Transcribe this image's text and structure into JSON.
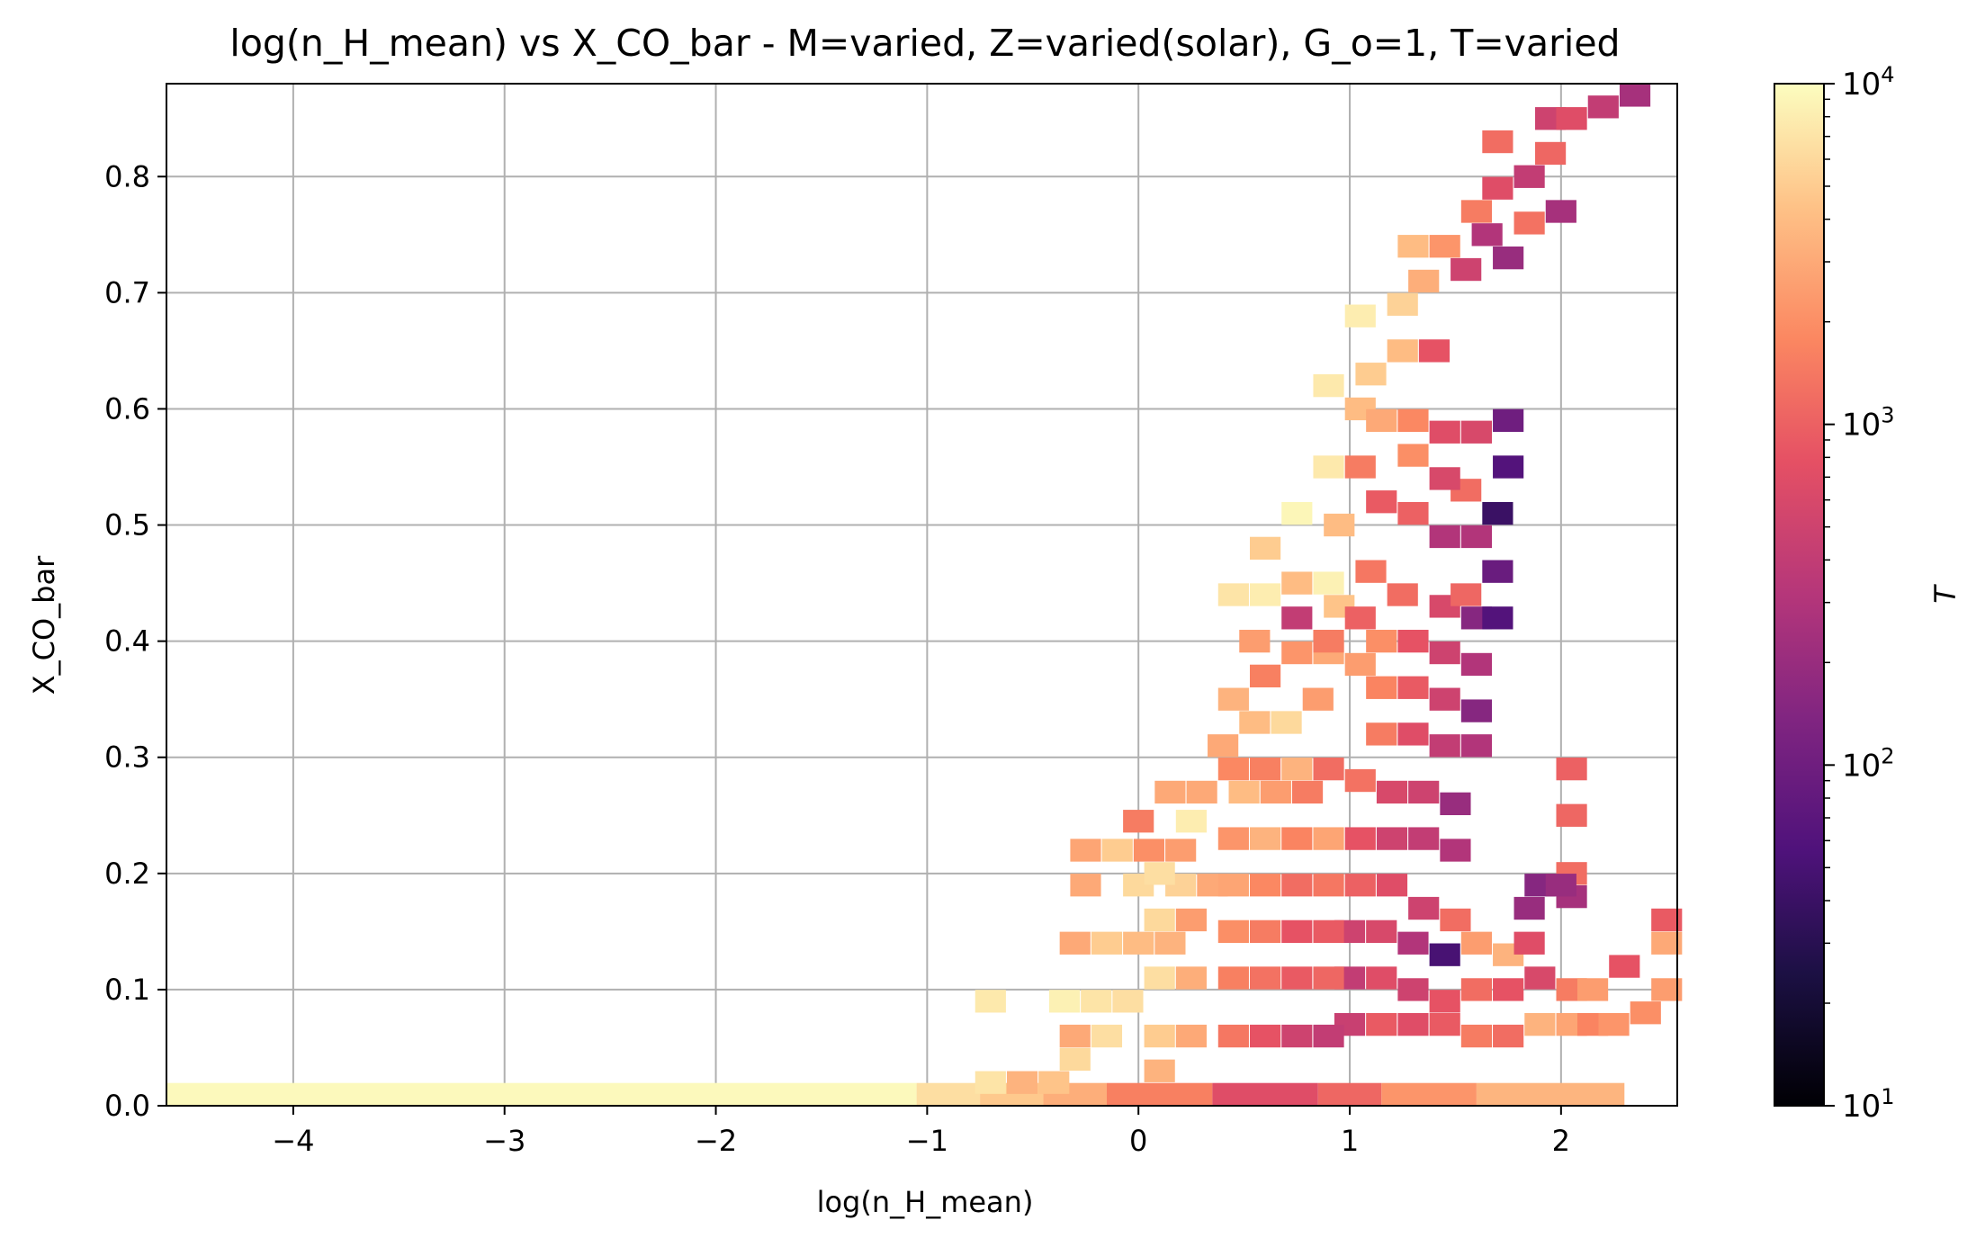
{
  "chart_data": {
    "type": "heatmap",
    "title": "log(n_H_mean) vs X_CO_bar - M=varied, Z=varied(solar), G_o=1, T=varied",
    "xlabel": "log(n_H_mean)",
    "ylabel": "X_CO_bar",
    "xlim": [
      -4.6,
      2.55
    ],
    "ylim": [
      0.0,
      0.88
    ],
    "x_ticks": [
      -4,
      -3,
      -2,
      -1,
      0,
      1,
      2
    ],
    "x_tick_labels": [
      "−4",
      "−3",
      "−2",
      "−1",
      "0",
      "1",
      "2"
    ],
    "y_ticks": [
      0.0,
      0.1,
      0.2,
      0.3,
      0.4,
      0.5,
      0.6,
      0.7,
      0.8
    ],
    "y_tick_labels": [
      "0.0",
      "0.1",
      "0.2",
      "0.3",
      "0.4",
      "0.5",
      "0.6",
      "0.7",
      "0.8"
    ],
    "grid": true,
    "colormap": "magma",
    "color_scale": "log",
    "colorbar": {
      "label": "T",
      "range": [
        10,
        10000
      ],
      "ticks": [
        10,
        100,
        1000,
        10000
      ],
      "tick_bases": [
        "10",
        "10",
        "10",
        "10"
      ],
      "tick_exponents": [
        "1",
        "2",
        "3",
        "4"
      ]
    },
    "bin_width_x": 0.1455,
    "bin_height_y": 0.0196,
    "bottom_row": {
      "y": 0.0,
      "segments": [
        {
          "x0": -4.6,
          "x1": -1.05,
          "T": 9500
        },
        {
          "x0": -1.05,
          "x1": -0.75,
          "T": 6500
        },
        {
          "x0": -0.75,
          "x1": -0.45,
          "T": 4800
        },
        {
          "x0": -0.45,
          "x1": -0.15,
          "T": 3200
        },
        {
          "x0": -0.15,
          "x1": 0.35,
          "T": 1600
        },
        {
          "x0": 0.35,
          "x1": 0.85,
          "T": 700
        },
        {
          "x0": 0.85,
          "x1": 1.15,
          "T": 1100
        },
        {
          "x0": 1.15,
          "x1": 1.6,
          "T": 2200
        },
        {
          "x0": 1.6,
          "x1": 2.3,
          "T": 3600
        }
      ]
    },
    "cells": [
      [
        -0.7,
        0.02,
        7000
      ],
      [
        -0.55,
        0.02,
        3500
      ],
      [
        -0.4,
        0.02,
        4500
      ],
      [
        -0.7,
        0.09,
        7500
      ],
      [
        -0.35,
        0.09,
        8500
      ],
      [
        -0.2,
        0.09,
        7000
      ],
      [
        -0.05,
        0.09,
        6500
      ],
      [
        -0.3,
        0.14,
        3000
      ],
      [
        -0.15,
        0.14,
        5000
      ],
      [
        0.0,
        0.14,
        4000
      ],
      [
        0.15,
        0.14,
        3500
      ],
      [
        -0.25,
        0.19,
        3000
      ],
      [
        0.0,
        0.19,
        6000
      ],
      [
        0.2,
        0.19,
        5500
      ],
      [
        0.35,
        0.19,
        3000
      ],
      [
        -0.25,
        0.22,
        2800
      ],
      [
        -0.1,
        0.22,
        5000
      ],
      [
        0.05,
        0.22,
        2000
      ],
      [
        0.2,
        0.22,
        2500
      ],
      [
        0.3,
        0.27,
        3000
      ],
      [
        0.0,
        0.245,
        1500
      ],
      [
        0.25,
        0.245,
        8000
      ],
      [
        0.15,
        0.27,
        3000
      ],
      [
        0.5,
        0.27,
        4000
      ],
      [
        0.65,
        0.27,
        2500
      ],
      [
        0.8,
        0.27,
        1500
      ],
      [
        0.45,
        0.29,
        1800
      ],
      [
        0.6,
        0.29,
        1600
      ],
      [
        0.75,
        0.29,
        3500
      ],
      [
        0.9,
        0.29,
        1200
      ],
      [
        0.4,
        0.31,
        3000
      ],
      [
        0.55,
        0.33,
        4000
      ],
      [
        0.7,
        0.33,
        6000
      ],
      [
        0.85,
        0.35,
        2500
      ],
      [
        0.45,
        0.35,
        3500
      ],
      [
        0.6,
        0.37,
        1600
      ],
      [
        0.75,
        0.39,
        2200
      ],
      [
        0.9,
        0.39,
        3000
      ],
      [
        0.55,
        0.4,
        2500
      ],
      [
        0.75,
        0.42,
        400
      ],
      [
        0.95,
        0.43,
        4500
      ],
      [
        0.45,
        0.44,
        7000
      ],
      [
        0.6,
        0.44,
        8000
      ],
      [
        0.75,
        0.45,
        4000
      ],
      [
        0.9,
        0.45,
        8500
      ],
      [
        0.6,
        0.48,
        5000
      ],
      [
        0.75,
        0.51,
        9000
      ],
      [
        0.95,
        0.5,
        4000
      ],
      [
        0.9,
        0.55,
        7500
      ],
      [
        1.05,
        0.55,
        1500
      ],
      [
        1.15,
        0.52,
        900
      ],
      [
        1.3,
        0.51,
        1000
      ],
      [
        1.05,
        0.6,
        4000
      ],
      [
        1.15,
        0.59,
        3000
      ],
      [
        1.3,
        0.59,
        1800
      ],
      [
        1.45,
        0.58,
        700
      ],
      [
        0.9,
        0.62,
        7500
      ],
      [
        1.1,
        0.63,
        5000
      ],
      [
        1.25,
        0.65,
        4000
      ],
      [
        1.4,
        0.65,
        800
      ],
      [
        1.05,
        0.68,
        8000
      ],
      [
        1.25,
        0.69,
        5500
      ],
      [
        1.35,
        0.71,
        3200
      ],
      [
        1.55,
        0.72,
        500
      ],
      [
        1.3,
        0.74,
        4000
      ],
      [
        1.45,
        0.74,
        2200
      ],
      [
        1.65,
        0.75,
        300
      ],
      [
        1.75,
        0.73,
        200
      ],
      [
        1.6,
        0.77,
        1500
      ],
      [
        1.7,
        0.79,
        700
      ],
      [
        1.85,
        0.8,
        400
      ],
      [
        1.7,
        0.83,
        1200
      ],
      [
        1.95,
        0.85,
        500
      ],
      [
        2.05,
        0.85,
        700
      ],
      [
        2.2,
        0.86,
        400
      ],
      [
        2.35,
        0.87,
        250
      ],
      [
        1.85,
        0.76,
        1300
      ],
      [
        2.0,
        0.77,
        250
      ],
      [
        1.95,
        0.82,
        1100
      ],
      [
        1.1,
        0.46,
        1400
      ],
      [
        1.25,
        0.44,
        1200
      ],
      [
        1.45,
        0.43,
        600
      ],
      [
        1.6,
        0.42,
        150
      ],
      [
        1.7,
        0.42,
        60
      ],
      [
        1.55,
        0.44,
        1100
      ],
      [
        1.7,
        0.46,
        90
      ],
      [
        1.15,
        0.4,
        2000
      ],
      [
        1.3,
        0.4,
        800
      ],
      [
        1.45,
        0.39,
        500
      ],
      [
        1.6,
        0.38,
        300
      ],
      [
        1.15,
        0.36,
        1700
      ],
      [
        1.3,
        0.36,
        900
      ],
      [
        1.45,
        0.35,
        500
      ],
      [
        1.6,
        0.34,
        150
      ],
      [
        1.15,
        0.32,
        1500
      ],
      [
        1.3,
        0.32,
        700
      ],
      [
        1.45,
        0.31,
        400
      ],
      [
        1.6,
        0.31,
        300
      ],
      [
        1.05,
        0.28,
        1300
      ],
      [
        1.2,
        0.27,
        600
      ],
      [
        1.35,
        0.27,
        500
      ],
      [
        1.5,
        0.26,
        200
      ],
      [
        1.05,
        0.23,
        800
      ],
      [
        1.2,
        0.23,
        500
      ],
      [
        1.35,
        0.23,
        400
      ],
      [
        1.5,
        0.22,
        300
      ],
      [
        1.05,
        0.19,
        1000
      ],
      [
        1.2,
        0.19,
        700
      ],
      [
        1.35,
        0.17,
        500
      ],
      [
        1.5,
        0.16,
        1200
      ],
      [
        1.0,
        0.15,
        500
      ],
      [
        1.15,
        0.15,
        600
      ],
      [
        1.3,
        0.14,
        300
      ],
      [
        1.45,
        0.13,
        50
      ],
      [
        1.6,
        0.14,
        2500
      ],
      [
        1.75,
        0.13,
        3500
      ],
      [
        1.85,
        0.17,
        200
      ],
      [
        2.05,
        0.18,
        250
      ],
      [
        1.0,
        0.11,
        400
      ],
      [
        1.15,
        0.11,
        700
      ],
      [
        1.3,
        0.1,
        500
      ],
      [
        1.45,
        0.09,
        800
      ],
      [
        1.6,
        0.1,
        1200
      ],
      [
        1.75,
        0.1,
        800
      ],
      [
        1.9,
        0.11,
        600
      ],
      [
        2.05,
        0.1,
        1500
      ],
      [
        1.0,
        0.07,
        450
      ],
      [
        1.15,
        0.07,
        900
      ],
      [
        1.3,
        0.07,
        700
      ],
      [
        1.45,
        0.07,
        900
      ],
      [
        1.6,
        0.06,
        1500
      ],
      [
        1.75,
        0.06,
        1200
      ],
      [
        1.9,
        0.07,
        3500
      ],
      [
        2.05,
        0.07,
        2800
      ],
      [
        2.15,
        0.07,
        1700
      ],
      [
        2.25,
        0.07,
        2200
      ],
      [
        2.4,
        0.08,
        2000
      ],
      [
        2.5,
        0.1,
        2500
      ],
      [
        2.3,
        0.12,
        800
      ],
      [
        2.5,
        0.14,
        3000
      ],
      [
        2.5,
        0.16,
        900
      ],
      [
        2.15,
        0.1,
        2500
      ],
      [
        0.45,
        0.06,
        1400
      ],
      [
        0.6,
        0.06,
        800
      ],
      [
        0.75,
        0.06,
        500
      ],
      [
        0.9,
        0.06,
        400
      ],
      [
        0.45,
        0.11,
        1600
      ],
      [
        0.6,
        0.11,
        1300
      ],
      [
        0.75,
        0.11,
        900
      ],
      [
        0.9,
        0.11,
        1100
      ],
      [
        0.45,
        0.15,
        2000
      ],
      [
        0.6,
        0.15,
        1500
      ],
      [
        0.75,
        0.15,
        800
      ],
      [
        0.9,
        0.15,
        900
      ],
      [
        0.45,
        0.19,
        2800
      ],
      [
        0.6,
        0.19,
        1800
      ],
      [
        0.75,
        0.19,
        1200
      ],
      [
        0.9,
        0.19,
        1400
      ],
      [
        0.1,
        0.06,
        5000
      ],
      [
        0.25,
        0.06,
        3000
      ],
      [
        0.1,
        0.11,
        6500
      ],
      [
        0.25,
        0.11,
        3200
      ],
      [
        0.1,
        0.16,
        6000
      ],
      [
        0.25,
        0.16,
        2500
      ],
      [
        0.1,
        0.2,
        6500
      ],
      [
        -0.3,
        0.06,
        3000
      ],
      [
        -0.15,
        0.06,
        6500
      ],
      [
        -0.3,
        0.04,
        6000
      ],
      [
        0.1,
        0.03,
        3500
      ],
      [
        0.9,
        0.23,
        2800
      ],
      [
        0.75,
        0.23,
        1700
      ],
      [
        0.6,
        0.23,
        3500
      ],
      [
        0.45,
        0.23,
        2200
      ],
      [
        0.9,
        0.4,
        1500
      ],
      [
        1.05,
        0.38,
        2500
      ],
      [
        1.05,
        0.42,
        1000
      ],
      [
        1.6,
        0.58,
        600
      ],
      [
        1.75,
        0.59,
        100
      ],
      [
        1.75,
        0.55,
        60
      ],
      [
        1.55,
        0.53,
        1200
      ],
      [
        1.7,
        0.51,
        40
      ],
      [
        1.6,
        0.49,
        300
      ],
      [
        1.45,
        0.49,
        300
      ],
      [
        1.45,
        0.54,
        600
      ],
      [
        1.3,
        0.56,
        2000
      ],
      [
        2.05,
        0.25,
        1100
      ],
      [
        2.05,
        0.29,
        1000
      ],
      [
        2.05,
        0.2,
        1200
      ],
      [
        1.9,
        0.19,
        150
      ],
      [
        1.85,
        0.14,
        700
      ],
      [
        2.0,
        0.19,
        200
      ]
    ]
  }
}
